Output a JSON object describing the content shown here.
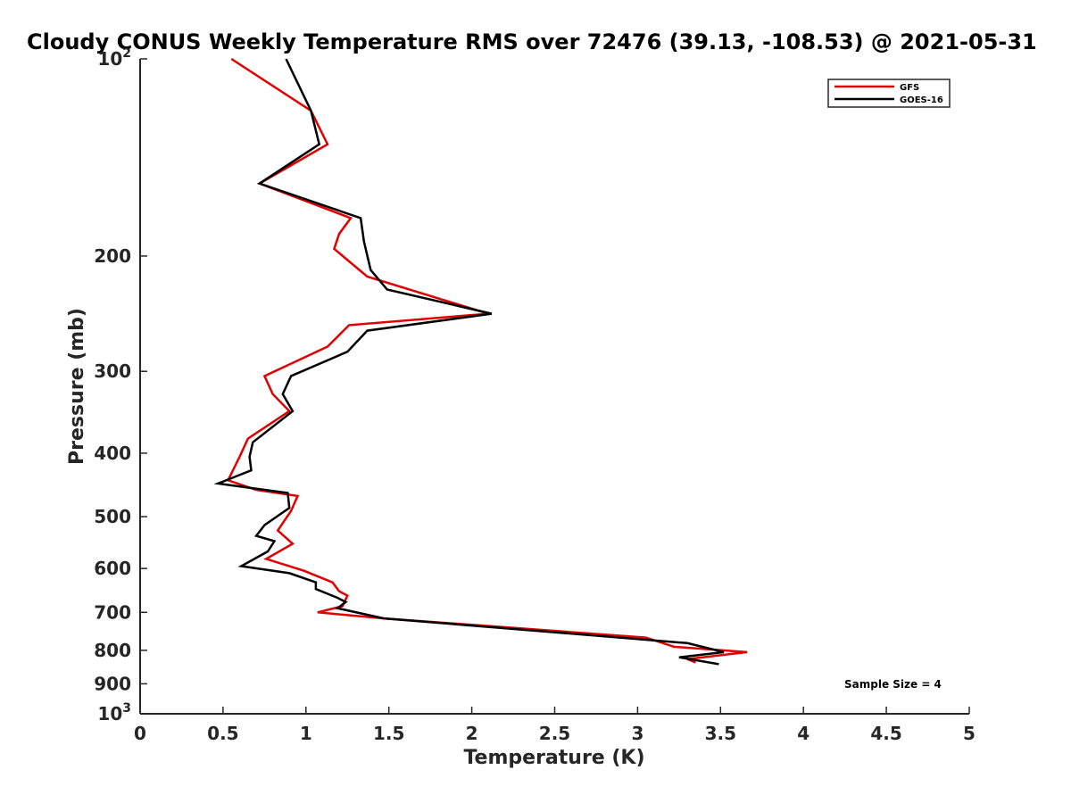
{
  "chart_data": {
    "type": "line",
    "title": "Cloudy CONUS Weekly Temperature RMS over 72476 (39.13, -108.53) @ 2021-05-31",
    "xlabel": "Temperature (K)",
    "ylabel": "Pressure (mb)",
    "xlim": [
      0,
      5
    ],
    "ylim": [
      100,
      1000
    ],
    "y_scale": "log",
    "y_reversed": true,
    "x_ticks": [
      "0",
      "0.5",
      "1",
      "1.5",
      "2",
      "2.5",
      "3",
      "3.5",
      "4",
      "4.5",
      "5"
    ],
    "y_ticks": [
      {
        "value": 100,
        "base": "10",
        "exp": "2"
      },
      {
        "value": 200,
        "label": "200"
      },
      {
        "value": 300,
        "label": "300"
      },
      {
        "value": 400,
        "label": "400"
      },
      {
        "value": 500,
        "label": "500"
      },
      {
        "value": 600,
        "label": "600"
      },
      {
        "value": 700,
        "label": "700"
      },
      {
        "value": 800,
        "label": "800"
      },
      {
        "value": 900,
        "label": "900"
      },
      {
        "value": 1000,
        "base": "10",
        "exp": "3"
      }
    ],
    "grid": false,
    "legend_position": "top-right",
    "annotation": "Sample Size = 4",
    "series": [
      {
        "name": "GFS",
        "color": "#e00000",
        "points": [
          [
            0.55,
            100
          ],
          [
            1.03,
            120
          ],
          [
            1.13,
            135
          ],
          [
            0.72,
            155
          ],
          [
            1.27,
            175
          ],
          [
            1.2,
            185
          ],
          [
            1.17,
            195
          ],
          [
            1.37,
            215
          ],
          [
            2.1,
            245
          ],
          [
            1.26,
            255
          ],
          [
            1.13,
            275
          ],
          [
            0.75,
            305
          ],
          [
            0.8,
            325
          ],
          [
            0.9,
            345
          ],
          [
            0.65,
            380
          ],
          [
            0.6,
            405
          ],
          [
            0.53,
            440
          ],
          [
            0.7,
            455
          ],
          [
            0.95,
            465
          ],
          [
            0.91,
            490
          ],
          [
            0.83,
            525
          ],
          [
            0.92,
            550
          ],
          [
            0.76,
            580
          ],
          [
            0.99,
            605
          ],
          [
            1.16,
            630
          ],
          [
            1.2,
            650
          ],
          [
            1.25,
            660
          ],
          [
            1.22,
            685
          ],
          [
            1.07,
            700
          ],
          [
            1.47,
            715
          ],
          [
            3.05,
            765
          ],
          [
            3.22,
            790
          ],
          [
            3.66,
            805
          ],
          [
            3.3,
            825
          ],
          [
            3.35,
            835
          ]
        ]
      },
      {
        "name": "GOES-16",
        "color": "#000000",
        "points": [
          [
            0.88,
            100
          ],
          [
            1.03,
            120
          ],
          [
            1.08,
            135
          ],
          [
            0.72,
            155
          ],
          [
            1.33,
            175
          ],
          [
            1.35,
            190
          ],
          [
            1.39,
            210
          ],
          [
            1.49,
            225
          ],
          [
            2.12,
            245
          ],
          [
            1.37,
            260
          ],
          [
            1.25,
            280
          ],
          [
            0.91,
            305
          ],
          [
            0.86,
            325
          ],
          [
            0.92,
            345
          ],
          [
            0.68,
            385
          ],
          [
            0.66,
            405
          ],
          [
            0.67,
            425
          ],
          [
            0.47,
            445
          ],
          [
            0.89,
            460
          ],
          [
            0.9,
            485
          ],
          [
            0.75,
            515
          ],
          [
            0.7,
            535
          ],
          [
            0.81,
            545
          ],
          [
            0.77,
            565
          ],
          [
            0.61,
            595
          ],
          [
            0.9,
            610
          ],
          [
            1.06,
            630
          ],
          [
            1.06,
            645
          ],
          [
            1.19,
            665
          ],
          [
            1.24,
            675
          ],
          [
            1.19,
            690
          ],
          [
            1.47,
            715
          ],
          [
            3.3,
            780
          ],
          [
            3.52,
            805
          ],
          [
            3.25,
            820
          ],
          [
            3.49,
            840
          ]
        ]
      }
    ]
  }
}
